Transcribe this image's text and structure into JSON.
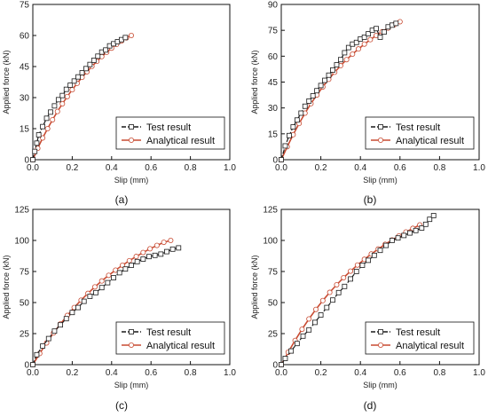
{
  "chart_data": [
    {
      "type": "line",
      "caption": "(a)",
      "xlabel": "Slip (mm)",
      "ylabel": "Applied force (kN)",
      "xlim": [
        0,
        1.0
      ],
      "ylim": [
        0,
        75
      ],
      "xticks": [
        "0.0",
        "0.2",
        "0.4",
        "0.6",
        "0.8",
        "1.0"
      ],
      "yticks": [
        "0",
        "15",
        "30",
        "45",
        "60",
        "75"
      ],
      "legend": "bottom-right",
      "series": [
        {
          "name": "Test result",
          "color": "#1a1a1a",
          "marker": "square",
          "x": [
            0,
            0.01,
            0.02,
            0.03,
            0.05,
            0.07,
            0.09,
            0.11,
            0.13,
            0.15,
            0.17,
            0.19,
            0.21,
            0.23,
            0.25,
            0.27,
            0.29,
            0.31,
            0.33,
            0.35,
            0.37,
            0.39,
            0.41,
            0.43,
            0.45,
            0.47
          ],
          "y": [
            0,
            4,
            8,
            12,
            16,
            20,
            23,
            26,
            29,
            31,
            34,
            36,
            38,
            40,
            42,
            44,
            46,
            48,
            50,
            52,
            53,
            55,
            56,
            57,
            58,
            59
          ]
        },
        {
          "name": "Analytical result",
          "color": "#c84b32",
          "marker": "circle",
          "x": [
            0,
            0.025,
            0.05,
            0.075,
            0.1,
            0.125,
            0.15,
            0.175,
            0.2,
            0.225,
            0.25,
            0.275,
            0.3,
            0.325,
            0.35,
            0.375,
            0.4,
            0.425,
            0.45,
            0.475,
            0.5
          ],
          "y": [
            0,
            5.5,
            10.5,
            15,
            19.3,
            23.3,
            27,
            30.5,
            33.8,
            36.9,
            39.8,
            42.5,
            45.1,
            47.5,
            49.8,
            51.9,
            53.9,
            55.7,
            57.4,
            58.9,
            60
          ]
        }
      ]
    },
    {
      "type": "line",
      "caption": "(b)",
      "xlabel": "Slip (mm)",
      "ylabel": "Applied force (kN)",
      "xlim": [
        0,
        1.0
      ],
      "ylim": [
        0,
        90
      ],
      "xticks": [
        "0.0",
        "0.2",
        "0.4",
        "0.6",
        "0.8",
        "1.0"
      ],
      "yticks": [
        "0",
        "15",
        "30",
        "45",
        "60",
        "75",
        "90"
      ],
      "legend": "bottom-right",
      "series": [
        {
          "name": "Test result",
          "color": "#1a1a1a",
          "marker": "square",
          "x": [
            0,
            0.02,
            0.04,
            0.06,
            0.08,
            0.1,
            0.12,
            0.14,
            0.16,
            0.18,
            0.2,
            0.22,
            0.24,
            0.26,
            0.28,
            0.3,
            0.32,
            0.34,
            0.36,
            0.38,
            0.4,
            0.42,
            0.44,
            0.46,
            0.48,
            0.5,
            0.52,
            0.54,
            0.56,
            0.58
          ],
          "y": [
            0,
            8,
            14,
            19,
            23,
            27,
            31,
            34,
            37,
            40,
            43,
            46,
            49,
            52,
            55,
            58,
            62,
            65,
            67,
            68,
            70,
            71,
            73,
            75,
            76,
            71,
            74,
            77,
            78,
            79
          ]
        },
        {
          "name": "Analytical result",
          "color": "#c84b32",
          "marker": "circle",
          "x": [
            0,
            0.03,
            0.06,
            0.09,
            0.12,
            0.15,
            0.18,
            0.21,
            0.24,
            0.27,
            0.3,
            0.33,
            0.36,
            0.39,
            0.42,
            0.45,
            0.48,
            0.51,
            0.54,
            0.57,
            0.6
          ],
          "y": [
            0,
            7.5,
            14.5,
            21,
            27,
            32.5,
            37.5,
            42.2,
            46.6,
            50.7,
            54.5,
            58,
            61.2,
            64.2,
            67,
            69.6,
            72,
            74.2,
            76.3,
            78.2,
            80
          ]
        }
      ]
    },
    {
      "type": "line",
      "caption": "(c)",
      "xlabel": "Slip (mm)",
      "ylabel": "Applied force (kN)",
      "xlim": [
        0,
        1.0
      ],
      "ylim": [
        0,
        125
      ],
      "xticks": [
        "0.0",
        "0.2",
        "0.4",
        "0.6",
        "0.8",
        "1.0"
      ],
      "yticks": [
        "0",
        "25",
        "50",
        "75",
        "100",
        "125"
      ],
      "legend": "bottom-right",
      "series": [
        {
          "name": "Test result",
          "color": "#1a1a1a",
          "marker": "square",
          "x": [
            0,
            0.02,
            0.05,
            0.08,
            0.11,
            0.14,
            0.17,
            0.2,
            0.23,
            0.26,
            0.29,
            0.32,
            0.35,
            0.38,
            0.41,
            0.44,
            0.47,
            0.5,
            0.53,
            0.56,
            0.59,
            0.62,
            0.65,
            0.68,
            0.71,
            0.74
          ],
          "y": [
            0,
            8,
            15,
            21,
            27,
            32,
            37,
            42,
            46,
            51,
            55,
            58,
            62,
            66,
            70,
            74,
            77,
            80,
            83,
            85,
            87,
            88,
            89,
            91,
            93,
            94
          ]
        },
        {
          "name": "Analytical result",
          "color": "#c84b32",
          "marker": "circle",
          "x": [
            0,
            0.035,
            0.07,
            0.105,
            0.14,
            0.175,
            0.21,
            0.245,
            0.28,
            0.315,
            0.35,
            0.385,
            0.42,
            0.455,
            0.49,
            0.525,
            0.56,
            0.595,
            0.63,
            0.665,
            0.7
          ],
          "y": [
            0,
            9,
            17.5,
            25.5,
            32.8,
            39.6,
            46,
            51.9,
            57.4,
            62.6,
            67.4,
            71.9,
            76.1,
            80,
            83.7,
            87.1,
            90.3,
            93.3,
            96,
            98.5,
            100
          ]
        }
      ]
    },
    {
      "type": "line",
      "caption": "(d)",
      "xlabel": "Slip (mm)",
      "ylabel": "Applied force (kN)",
      "xlim": [
        0,
        1.0
      ],
      "ylim": [
        0,
        125
      ],
      "xticks": [
        "0.0",
        "0.2",
        "0.4",
        "0.6",
        "0.8",
        "1.0"
      ],
      "yticks": [
        "0",
        "25",
        "50",
        "75",
        "100",
        "125"
      ],
      "legend": "bottom-right",
      "series": [
        {
          "name": "Test result",
          "color": "#1a1a1a",
          "marker": "square",
          "x": [
            0,
            0.02,
            0.05,
            0.08,
            0.11,
            0.14,
            0.17,
            0.2,
            0.23,
            0.26,
            0.29,
            0.32,
            0.35,
            0.38,
            0.41,
            0.44,
            0.47,
            0.5,
            0.53,
            0.56,
            0.59,
            0.62,
            0.65,
            0.68,
            0.71,
            0.73,
            0.75,
            0.77
          ],
          "y": [
            0,
            5,
            11,
            17,
            23,
            28,
            34,
            40,
            46,
            52,
            58,
            63,
            69,
            75,
            80,
            84,
            88,
            92,
            96,
            100,
            102,
            104,
            106,
            108,
            110,
            113,
            117,
            120
          ]
        },
        {
          "name": "Analytical result",
          "color": "#c84b32",
          "marker": "circle",
          "x": [
            0,
            0.035,
            0.07,
            0.105,
            0.14,
            0.175,
            0.21,
            0.245,
            0.28,
            0.315,
            0.35,
            0.385,
            0.42,
            0.455,
            0.49,
            0.525,
            0.56,
            0.595,
            0.63,
            0.665,
            0.7
          ],
          "y": [
            0,
            10,
            19.5,
            28.5,
            36.8,
            44.5,
            51.6,
            58.2,
            64.3,
            70,
            75.3,
            80.2,
            84.8,
            89.1,
            93.1,
            96.9,
            100.4,
            103.7,
            106.8,
            109.7,
            112.5
          ]
        }
      ]
    }
  ]
}
